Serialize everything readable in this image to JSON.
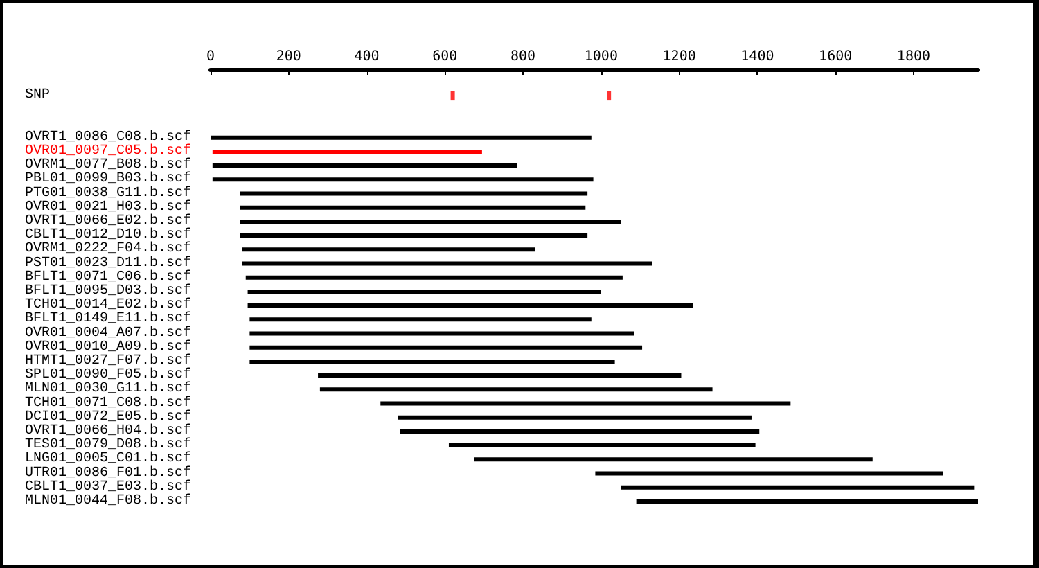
{
  "chart_data": {
    "type": "bar",
    "orientation": "horizontal",
    "categories": [
      "SNP",
      null,
      null,
      "OVRT1_0086_C08.b.scf",
      "OVR01_0097_C05.b.scf",
      "OVRM1_0077_B08.b.scf",
      "PBL01_0099_B03.b.scf",
      "PTG01_0038_G11.b.scf",
      "OVR01_0021_H03.b.scf",
      "OVRT1_0066_E02.b.scf",
      "CBLT1_0012_D10.b.scf",
      "OVRM1_0222_F04.b.scf",
      "PST01_0023_D11.b.scf",
      "BFLT1_0071_C06.b.scf",
      "BFLT1_0095_D03.b.scf",
      "TCH01_0014_E02.b.scf",
      "BFLT1_0149_E11.b.scf",
      "OVR01_0004_A07.b.scf",
      "OVR01_0010_A09.b.scf",
      "HTMT1_0027_F07.b.scf",
      "SPL01_0090_F05.b.scf",
      "MLN01_0030_G11.b.scf",
      "TCH01_0071_C08.b.scf",
      "DCI01_0072_E05.b.scf",
      "OVRT1_0066_H04.b.scf",
      "TES01_0079_D08.b.scf",
      "LNG01_0005_C01.b.scf",
      "UTR01_0086_F01.b.scf",
      "CBLT1_0037_E03.b.scf",
      "MLN01_0044_F08.b.scf"
    ],
    "series": [
      {
        "type": "bar",
        "base": [
          null,
          null,
          null,
          0,
          5,
          5,
          5,
          75,
          75,
          75,
          75,
          80,
          80,
          90,
          95,
          95,
          100,
          100,
          100,
          100,
          275,
          280,
          435,
          480,
          485,
          610,
          675,
          985,
          1050,
          1090
        ],
        "values": [
          null,
          null,
          null,
          975,
          690,
          780,
          975,
          890,
          885,
          975,
          890,
          750,
          1050,
          965,
          905,
          1140,
          875,
          985,
          1005,
          935,
          930,
          1005,
          1050,
          905,
          920,
          785,
          1020,
          890,
          905,
          875
        ],
        "colors": [
          null,
          null,
          null,
          "#000000",
          "#ff0000",
          "#000000",
          "#000000",
          "#000000",
          "#000000",
          "#000000",
          "#000000",
          "#000000",
          "#000000",
          "#000000",
          "#000000",
          "#000000",
          "#000000",
          "#000000",
          "#000000",
          "#000000",
          "#000000",
          "#000000",
          "#000000",
          "#000000",
          "#000000",
          "#000000",
          "#000000",
          "#000000",
          "#000000",
          "#000000"
        ]
      },
      {
        "type": "scatter",
        "x": [
          "SNP",
          "SNP"
        ],
        "values": [
          620,
          1020
        ],
        "color": "#ff0000",
        "marker": "square"
      }
    ],
    "xlim": [
      0,
      1965
    ],
    "xticks": [
      0,
      200,
      400,
      600,
      800,
      1000,
      1200,
      1400,
      1600,
      1800
    ],
    "grid": false
  }
}
